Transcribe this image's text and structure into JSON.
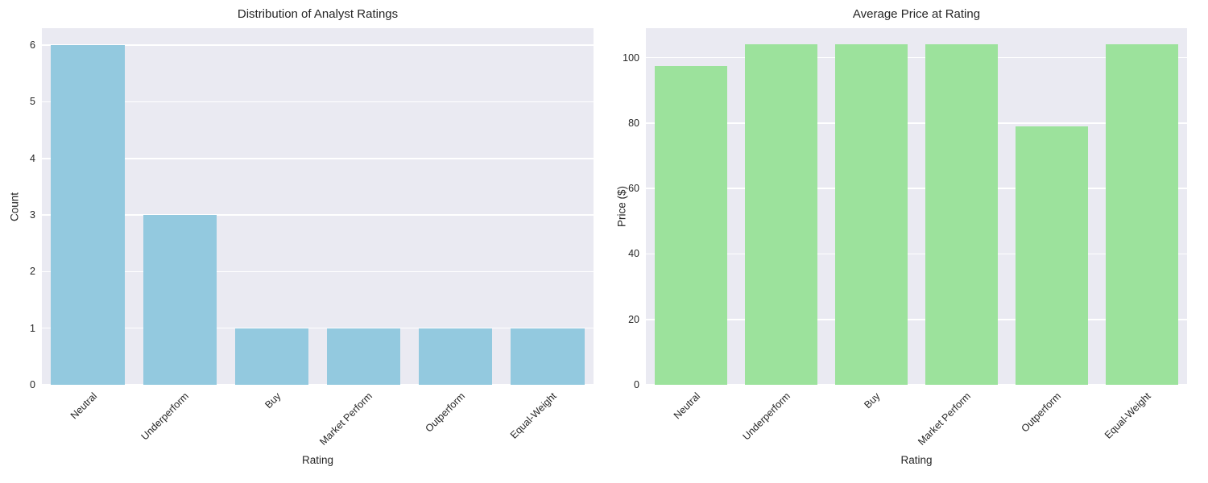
{
  "figure": {
    "background": "#ffffff",
    "plot_background": "#EAEAF2",
    "grid_color": "#ffffff",
    "text_color": "#262626"
  },
  "chart_data": [
    {
      "type": "bar",
      "title": "Distribution of Analyst Ratings",
      "xlabel": "Rating",
      "ylabel": "Count",
      "categories": [
        "Neutral",
        "Underperform",
        "Buy",
        "Market Perform",
        "Outperform",
        "Equal-Weight"
      ],
      "values": [
        6,
        3,
        1,
        1,
        1,
        1
      ],
      "yticks": [
        0,
        1,
        2,
        3,
        4,
        5,
        6
      ],
      "ylim": [
        0,
        6.3
      ],
      "bar_color": "#93C9DF",
      "grid": true,
      "legend": "none",
      "xtick_rotation": 45
    },
    {
      "type": "bar",
      "title": "Average Price at Rating",
      "xlabel": "Rating",
      "ylabel": "Price ($)",
      "categories": [
        "Neutral",
        "Underperform",
        "Buy",
        "Market Perform",
        "Outperform",
        "Equal-Weight"
      ],
      "values": [
        97.5,
        104,
        104,
        104,
        79,
        104
      ],
      "yticks": [
        0,
        20,
        40,
        60,
        80,
        100
      ],
      "ylim": [
        0,
        109
      ],
      "bar_color": "#9CE29C",
      "grid": true,
      "legend": "none",
      "xtick_rotation": 45
    }
  ]
}
